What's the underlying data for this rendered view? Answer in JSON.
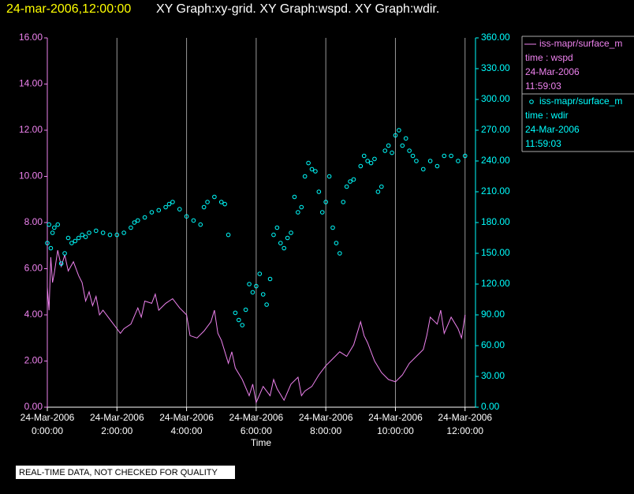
{
  "chart_data": {
    "type": "line",
    "title_date": "24-mar-2006,12:00:00",
    "title": "XY Graph:xy-grid.  XY Graph:wspd.  XY Graph:wdir.",
    "x_label": "Time",
    "footer": "REAL-TIME DATA, NOT CHECKED FOR QUALITY",
    "xlim": [
      0,
      12.3
    ],
    "xticks": [
      {
        "value": 0,
        "label": "0:00:00",
        "date": "24-Mar-2006"
      },
      {
        "value": 2,
        "label": "2:00:00",
        "date": "24-Mar-2006"
      },
      {
        "value": 4,
        "label": "4:00:00",
        "date": "24-Mar-2006"
      },
      {
        "value": 6,
        "label": "6:00:00",
        "date": "24-Mar-2006"
      },
      {
        "value": 8,
        "label": "8:00:00",
        "date": "24-Mar-2006"
      },
      {
        "value": 10,
        "label": "10:00:00",
        "date": "24-Mar-2006"
      },
      {
        "value": 12,
        "label": "12:00:00",
        "date": "24-Mar-2006"
      }
    ],
    "ylim": [
      0,
      16
    ],
    "yticks": [
      {
        "value": 0,
        "label": "0.00"
      },
      {
        "value": 2,
        "label": "2.00"
      },
      {
        "value": 4,
        "label": "4.00"
      },
      {
        "value": 6,
        "label": "6.00"
      },
      {
        "value": 8,
        "label": "8.00"
      },
      {
        "value": 10,
        "label": "10.00"
      },
      {
        "value": 12,
        "label": "12.00"
      },
      {
        "value": 14,
        "label": "14.00"
      },
      {
        "value": 16,
        "label": "16.00"
      }
    ],
    "y2lim": [
      0,
      360
    ],
    "y2ticks": [
      {
        "value": 0,
        "label": "0.00"
      },
      {
        "value": 30,
        "label": "30.00"
      },
      {
        "value": 60,
        "label": "60.00"
      },
      {
        "value": 90,
        "label": "90.00"
      },
      {
        "value": 120,
        "label": "120.00"
      },
      {
        "value": 150,
        "label": "150.00"
      },
      {
        "value": 180,
        "label": "180.00"
      },
      {
        "value": 210,
        "label": "210.00"
      },
      {
        "value": 240,
        "label": "240.00"
      },
      {
        "value": 270,
        "label": "270.00"
      },
      {
        "value": 300,
        "label": "300.00"
      },
      {
        "value": 330,
        "label": "330.00"
      },
      {
        "value": 360,
        "label": "360.00"
      }
    ],
    "grid": "x",
    "series": [
      {
        "name": "iss-mapr/surface_m",
        "kind": "line",
        "color": "#ee82ee",
        "legend_lines": [
          "time : wspd",
          "24-Mar-2006",
          "11:59:03"
        ],
        "x": [
          0,
          0.05,
          0.1,
          0.15,
          0.2,
          0.3,
          0.4,
          0.5,
          0.6,
          0.75,
          0.9,
          1.0,
          1.1,
          1.2,
          1.3,
          1.4,
          1.5,
          1.6,
          1.8,
          2.0,
          2.1,
          2.2,
          2.4,
          2.6,
          2.7,
          2.8,
          3.0,
          3.1,
          3.2,
          3.4,
          3.6,
          3.8,
          4.0,
          4.1,
          4.3,
          4.5,
          4.7,
          4.8,
          4.9,
          5.0,
          5.2,
          5.3,
          5.4,
          5.6,
          5.8,
          5.9,
          6.0,
          6.2,
          6.4,
          6.5,
          6.6,
          6.8,
          7.0,
          7.2,
          7.3,
          7.4,
          7.6,
          7.8,
          8.0,
          8.2,
          8.4,
          8.6,
          8.8,
          9.0,
          9.1,
          9.2,
          9.4,
          9.6,
          9.8,
          10.0,
          10.2,
          10.4,
          10.6,
          10.8,
          10.9,
          11.0,
          11.2,
          11.3,
          11.4,
          11.6,
          11.8,
          11.9,
          12.0
        ],
        "values": [
          5.2,
          4.2,
          6.5,
          5.4,
          5.8,
          6.8,
          6.1,
          6.6,
          5.9,
          6.3,
          5.7,
          5.4,
          4.6,
          5.0,
          4.4,
          4.8,
          4.0,
          4.2,
          3.8,
          3.4,
          3.2,
          3.4,
          3.6,
          4.3,
          3.9,
          4.6,
          4.5,
          4.9,
          4.2,
          4.5,
          4.7,
          4.3,
          4.0,
          3.1,
          3.0,
          3.3,
          3.7,
          4.2,
          3.2,
          2.9,
          1.9,
          2.4,
          1.7,
          1.2,
          0.5,
          1.0,
          0.2,
          0.9,
          0.5,
          1.2,
          0.8,
          0.3,
          1.0,
          1.3,
          0.5,
          0.7,
          0.9,
          1.4,
          1.8,
          2.1,
          2.4,
          2.2,
          2.7,
          3.7,
          3.1,
          2.8,
          2.0,
          1.5,
          1.2,
          1.1,
          1.4,
          1.9,
          2.2,
          2.5,
          3.1,
          3.9,
          3.6,
          4.2,
          3.2,
          3.9,
          3.4,
          3.0,
          4.0
        ]
      },
      {
        "name": "iss-mapr/surface_m",
        "kind": "scatter",
        "color": "#00ffff",
        "axis": "y2",
        "legend_lines": [
          "time : wdir",
          "24-Mar-2006",
          "11:59:03"
        ],
        "x": [
          0,
          0.05,
          0.1,
          0.15,
          0.2,
          0.3,
          0.4,
          0.5,
          0.6,
          0.7,
          0.8,
          0.9,
          1.0,
          1.1,
          1.2,
          1.4,
          1.6,
          1.8,
          2.0,
          2.2,
          2.4,
          2.5,
          2.6,
          2.8,
          3.0,
          3.2,
          3.4,
          3.5,
          3.6,
          3.8,
          4.0,
          4.2,
          4.4,
          4.5,
          4.6,
          4.8,
          5.0,
          5.1,
          5.2,
          5.4,
          5.5,
          5.6,
          5.7,
          5.8,
          5.9,
          6.0,
          6.1,
          6.2,
          6.3,
          6.4,
          6.5,
          6.6,
          6.7,
          6.8,
          6.9,
          7.0,
          7.1,
          7.2,
          7.3,
          7.4,
          7.5,
          7.6,
          7.7,
          7.8,
          7.9,
          8.0,
          8.1,
          8.2,
          8.3,
          8.4,
          8.5,
          8.6,
          8.7,
          8.8,
          9.0,
          9.1,
          9.2,
          9.3,
          9.4,
          9.5,
          9.6,
          9.7,
          9.8,
          9.9,
          10.0,
          10.1,
          10.2,
          10.3,
          10.4,
          10.5,
          10.6,
          10.8,
          11.0,
          11.2,
          11.4,
          11.6,
          11.8,
          12.0
        ],
        "values": [
          160,
          178,
          155,
          170,
          175,
          178,
          140,
          150,
          165,
          160,
          162,
          165,
          168,
          166,
          170,
          172,
          170,
          168,
          168,
          170,
          175,
          180,
          182,
          185,
          190,
          192,
          195,
          198,
          200,
          193,
          186,
          182,
          178,
          195,
          200,
          205,
          200,
          198,
          168,
          92,
          85,
          80,
          95,
          120,
          112,
          118,
          130,
          110,
          100,
          125,
          168,
          175,
          160,
          155,
          165,
          170,
          205,
          190,
          195,
          225,
          238,
          232,
          230,
          210,
          190,
          200,
          225,
          175,
          160,
          150,
          200,
          215,
          220,
          222,
          235,
          245,
          240,
          238,
          242,
          210,
          215,
          250,
          255,
          248,
          265,
          270,
          255,
          262,
          250,
          245,
          240,
          232,
          240,
          235,
          245,
          245,
          240,
          245
        ]
      }
    ]
  }
}
